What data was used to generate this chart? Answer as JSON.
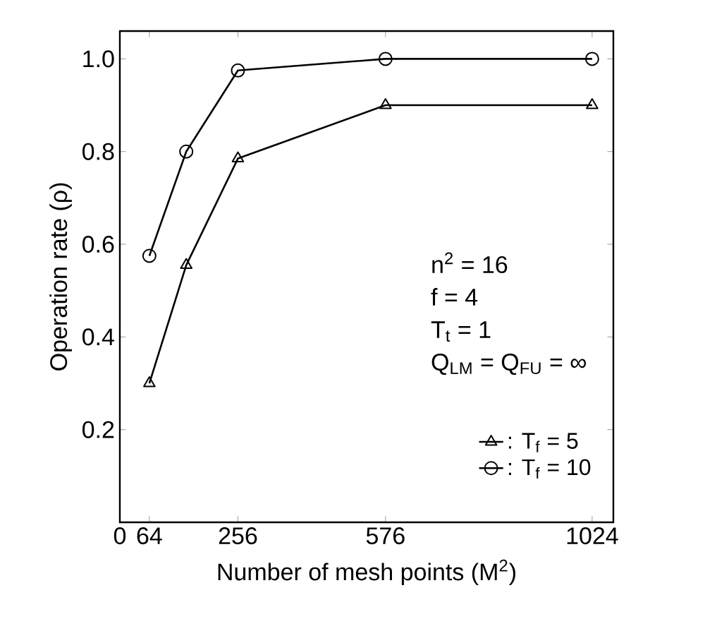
{
  "chart_data": {
    "type": "line",
    "xlabel": "Number of mesh points (M$^{2}$)",
    "ylabel": "Operation rate (ρ)",
    "xlim": [
      0,
      1070
    ],
    "xticks": [
      0,
      64,
      256,
      576,
      1024
    ],
    "ylim": [
      0,
      1.06
    ],
    "yticks": [
      0.2,
      0.4,
      0.6,
      0.8,
      {
        "value": 1.0,
        "label": "1.0"
      }
    ],
    "legend": "right",
    "grid": false,
    "annotations": [
      "n$^{2}$ = 16",
      "f = 4",
      "T$_{t}$ = 1",
      "Q$_{LM}$ = Q$_{FU}$ = ∞"
    ],
    "series": [
      {
        "name": ":  T$_{f}$ = 5",
        "color": "#000000",
        "marker": "triangle",
        "x": [
          64,
          144,
          256,
          576,
          1024
        ],
        "values": [
          0.3,
          0.555,
          0.785,
          0.9,
          0.9
        ]
      },
      {
        "name": ":  T$_{f}$ = 10",
        "color": "#000000",
        "marker": "circle",
        "x": [
          64,
          144,
          256,
          576,
          1024
        ],
        "values": [
          0.575,
          0.8,
          0.975,
          1.0,
          1.0
        ]
      }
    ]
  }
}
